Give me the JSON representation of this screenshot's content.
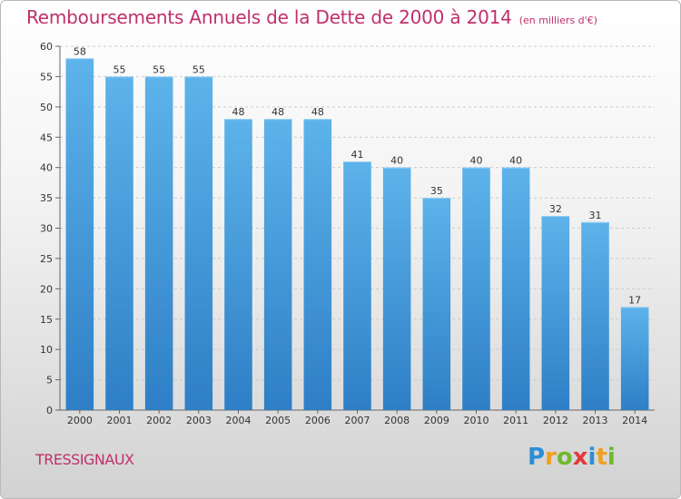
{
  "chart_data": {
    "type": "bar",
    "title": "Remboursements Annuels de la Dette de 2000 à 2014",
    "subtitle": "(en milliers d'€)",
    "categories": [
      "2000",
      "2001",
      "2002",
      "2003",
      "2004",
      "2005",
      "2006",
      "2007",
      "2008",
      "2009",
      "2010",
      "2011",
      "2012",
      "2013",
      "2014"
    ],
    "values": [
      58,
      55,
      55,
      55,
      48,
      48,
      48,
      41,
      40,
      35,
      40,
      40,
      32,
      31,
      17
    ],
    "xlabel": "",
    "ylabel": "",
    "ylim": [
      0,
      60
    ],
    "yticks": [
      0,
      5,
      10,
      15,
      20,
      25,
      30,
      35,
      40,
      45,
      50,
      55,
      60
    ],
    "grid": true,
    "colors": {
      "bar_top": "#5db3ea",
      "bar_bottom": "#2e7fc6",
      "title": "#c0306a"
    }
  },
  "commune": "TRESSIGNAUX",
  "logo": {
    "letters": [
      "P",
      "r",
      "o",
      "x",
      "i",
      "t",
      "i"
    ],
    "colors": [
      "#2b8fd6",
      "#f0a020",
      "#6fb92f",
      "#e03a3a",
      "#2b8fd6",
      "#f0a020",
      "#6fb92f"
    ]
  }
}
